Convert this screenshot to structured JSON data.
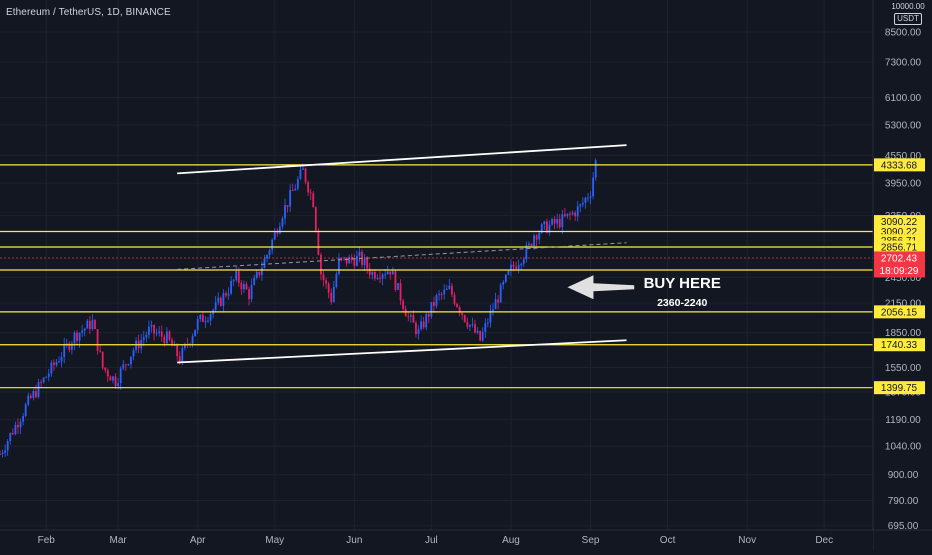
{
  "chart_title": "Ethereum / TetherUS, 1D, BINANCE",
  "price_scale": {
    "top_label": "10000.00",
    "currency": "USDT"
  },
  "colors": {
    "background": "#131722",
    "up_candle": "#2962ff",
    "down_candle": "#e91e63",
    "level_line": "#ffeb3b",
    "channel_line": "#ffffff",
    "axis_text": "#b2b5be",
    "current_price_badge": "#f23645"
  },
  "chart_data": {
    "type": "candlestick",
    "title": "Ethereum / TetherUS, 1D, BINANCE",
    "log_scale": true,
    "ylim": [
      680,
      10000
    ],
    "xlim": [
      "2021-01-14",
      "2021-12-20"
    ],
    "y_ticks": [
      695,
      790,
      900,
      1040,
      1190,
      1370,
      1550,
      1850,
      2150,
      2450,
      2850,
      3350,
      3950,
      4550,
      5300,
      6100,
      7300,
      8500
    ],
    "y_tick_labels": [
      "695.00",
      "790.00",
      "900.00",
      "1040.00",
      "1190.00",
      "1370.00",
      "1550.00",
      "1850.00",
      "2150.00",
      "2450.00",
      "2850.00",
      "3350.00",
      "3950.00",
      "4550.00",
      "5300.00",
      "6100.00",
      "7300.00",
      "8500.00"
    ],
    "x_ticks": [
      {
        "label": "Feb",
        "date": "2021-02-01"
      },
      {
        "label": "Mar",
        "date": "2021-03-01"
      },
      {
        "label": "Apr",
        "date": "2021-04-01"
      },
      {
        "label": "May",
        "date": "2021-05-01"
      },
      {
        "label": "Jun",
        "date": "2021-06-01"
      },
      {
        "label": "Jul",
        "date": "2021-07-01"
      },
      {
        "label": "Aug",
        "date": "2021-08-01"
      },
      {
        "label": "Sep",
        "date": "2021-09-01"
      },
      {
        "label": "Oct",
        "date": "2021-10-01"
      },
      {
        "label": "Nov",
        "date": "2021-11-01"
      },
      {
        "label": "Dec",
        "date": "2021-12-01"
      }
    ],
    "price_path": [
      {
        "date": "2021-01-14",
        "price": 1000
      },
      {
        "date": "2021-01-25",
        "price": 1300
      },
      {
        "date": "2021-02-05",
        "price": 1600
      },
      {
        "date": "2021-02-12",
        "price": 1820
      },
      {
        "date": "2021-02-19",
        "price": 1950
      },
      {
        "date": "2021-02-23",
        "price": 1550
      },
      {
        "date": "2021-02-28",
        "price": 1450
      },
      {
        "date": "2021-03-07",
        "price": 1700
      },
      {
        "date": "2021-03-13",
        "price": 1870
      },
      {
        "date": "2021-03-20",
        "price": 1800
      },
      {
        "date": "2021-03-25",
        "price": 1620
      },
      {
        "date": "2021-04-01",
        "price": 1950
      },
      {
        "date": "2021-04-08",
        "price": 2100
      },
      {
        "date": "2021-04-16",
        "price": 2450
      },
      {
        "date": "2021-04-21",
        "price": 2250
      },
      {
        "date": "2021-04-28",
        "price": 2750
      },
      {
        "date": "2021-05-04",
        "price": 3400
      },
      {
        "date": "2021-05-10",
        "price": 4000
      },
      {
        "date": "2021-05-12",
        "price": 4200
      },
      {
        "date": "2021-05-16",
        "price": 3600
      },
      {
        "date": "2021-05-19",
        "price": 2500
      },
      {
        "date": "2021-05-23",
        "price": 2200
      },
      {
        "date": "2021-05-26",
        "price": 2650
      },
      {
        "date": "2021-06-03",
        "price": 2700
      },
      {
        "date": "2021-06-08",
        "price": 2500
      },
      {
        "date": "2021-06-15",
        "price": 2550
      },
      {
        "date": "2021-06-22",
        "price": 2000
      },
      {
        "date": "2021-06-26",
        "price": 1850
      },
      {
        "date": "2021-07-03",
        "price": 2200
      },
      {
        "date": "2021-07-08",
        "price": 2300
      },
      {
        "date": "2021-07-14",
        "price": 2000
      },
      {
        "date": "2021-07-20",
        "price": 1780
      },
      {
        "date": "2021-07-25",
        "price": 2100
      },
      {
        "date": "2021-08-01",
        "price": 2550
      },
      {
        "date": "2021-08-08",
        "price": 2850
      },
      {
        "date": "2021-08-10",
        "price": 3050
      },
      {
        "date": "2021-08-14",
        "price": 3150
      },
      {
        "date": "2021-08-20",
        "price": 3250
      },
      {
        "date": "2021-08-24",
        "price": 3350
      },
      {
        "date": "2021-08-28",
        "price": 3500
      },
      {
        "date": "2021-09-01",
        "price": 3800
      },
      {
        "date": "2021-09-03",
        "price": 4400
      }
    ],
    "price_levels": [
      {
        "label": "4333.68",
        "value": 4333.68
      },
      {
        "label": "3090.22",
        "value": 3090.22
      },
      {
        "label": "2856.71",
        "value": 2856.71
      },
      {
        "label": "2542.57",
        "value": 2542.57
      },
      {
        "label": "2056.15",
        "value": 2056.15
      },
      {
        "label": "1740.33",
        "value": 1740.33
      },
      {
        "label": "1399.75",
        "value": 1399.75
      }
    ],
    "level_tags": [
      {
        "label": "4333.68",
        "value": 4333.68
      },
      {
        "label": "3090.22",
        "value": 3250
      },
      {
        "label": "3090.22",
        "value": 3090.22
      },
      {
        "label": "2856.71",
        "value": 2950
      },
      {
        "label": "2856.71",
        "value": 2856.71
      },
      {
        "label": "2542.57",
        "value": 2542.57
      },
      {
        "label": "2056.15",
        "value": 2056.15
      },
      {
        "label": "1740.33",
        "value": 1740.33
      },
      {
        "label": "1399.75",
        "value": 1399.75
      }
    ],
    "current_price": {
      "value": "2702.43",
      "countdown": "18:09:29"
    },
    "channel": {
      "upper": [
        {
          "date": "2021-03-24",
          "price": 4150
        },
        {
          "date": "2021-09-15",
          "price": 4790
        }
      ],
      "lower": [
        {
          "date": "2021-03-24",
          "price": 1590
        },
        {
          "date": "2021-09-15",
          "price": 1780
        }
      ],
      "mid_dashed": [
        {
          "date": "2021-03-24",
          "price": 2550
        },
        {
          "date": "2021-09-15",
          "price": 2920
        }
      ]
    },
    "annotation": {
      "title": "BUY HERE",
      "range": "2360-2240",
      "arrow_tip": {
        "date": "2021-08-23",
        "price": 2330
      },
      "arrow_tail": {
        "date": "2021-09-18",
        "price": 2330
      }
    }
  }
}
